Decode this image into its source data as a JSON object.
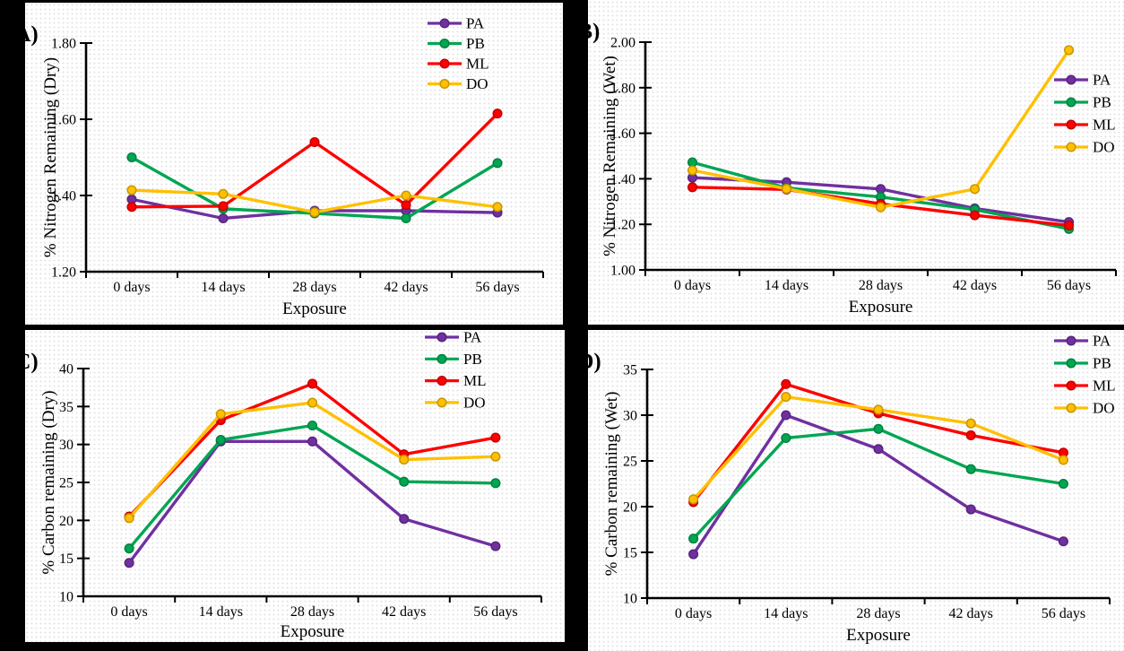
{
  "figure": {
    "background_color": "#000000",
    "panel_background_color": "#ffffff",
    "texture_dot_color": "#e2e2e2",
    "text_color": "#000000"
  },
  "series_colors": {
    "PA": "#7030A0",
    "PB": "#00A652",
    "ML": "#FE0000",
    "DO": "#FFC000"
  },
  "chart_data": [
    {
      "id": "A",
      "panel_label": "(A)",
      "type": "line",
      "xlabel": "Exposure",
      "ylabel": "% Nitrogen Remaining (Dry)",
      "ylim": [
        1.2,
        1.8
      ],
      "yticks": [
        1.2,
        1.4,
        1.6,
        1.8
      ],
      "ytick_decimals": 2,
      "grid": false,
      "legend_position": "inside-top-right",
      "categories": [
        "0 days",
        "14 days",
        "28 days",
        "42 days",
        "56 days"
      ],
      "series": [
        {
          "name": "PA",
          "color": "#7030A0",
          "values": [
            1.39,
            1.34,
            1.36,
            1.36,
            1.355
          ]
        },
        {
          "name": "PB",
          "color": "#00A652",
          "values": [
            1.5,
            1.365,
            1.353,
            1.34,
            1.485
          ]
        },
        {
          "name": "ML",
          "color": "#FE0000",
          "values": [
            1.37,
            1.372,
            1.54,
            1.375,
            1.615
          ]
        },
        {
          "name": "DO",
          "color": "#FFC000",
          "values": [
            1.414,
            1.404,
            1.356,
            1.4,
            1.37
          ]
        }
      ]
    },
    {
      "id": "B",
      "panel_label": "(B)",
      "type": "line",
      "xlabel": "Exposure",
      "ylabel": "% Nitrogen Remaining (Wet)",
      "ylim": [
        1.0,
        2.0
      ],
      "yticks": [
        1.0,
        1.2,
        1.4,
        1.6,
        1.8,
        2.0
      ],
      "ytick_decimals": 2,
      "grid": false,
      "legend_position": "inside-middle-right",
      "categories": [
        "0 days",
        "14 days",
        "28 days",
        "42 days",
        "56 days"
      ],
      "series": [
        {
          "name": "PA",
          "color": "#7030A0",
          "values": [
            1.405,
            1.385,
            1.355,
            1.27,
            1.21
          ]
        },
        {
          "name": "PB",
          "color": "#00A652",
          "values": [
            1.472,
            1.36,
            1.32,
            1.265,
            1.18
          ]
        },
        {
          "name": "ML",
          "color": "#FE0000",
          "values": [
            1.363,
            1.353,
            1.29,
            1.24,
            1.195
          ]
        },
        {
          "name": "DO",
          "color": "#FFC000",
          "values": [
            1.437,
            1.356,
            1.275,
            1.355,
            1.965
          ]
        }
      ]
    },
    {
      "id": "C",
      "panel_label": "(C)",
      "type": "line",
      "xlabel": "Exposure",
      "ylabel": "% Carbon remaining (Dry)",
      "ylim": [
        10,
        40
      ],
      "yticks": [
        10,
        15,
        20,
        25,
        30,
        35,
        40
      ],
      "ytick_decimals": 0,
      "grid": false,
      "legend_position": "inside-top-right",
      "categories": [
        "0 days",
        "14 days",
        "28 days",
        "42 days",
        "56 days"
      ],
      "series": [
        {
          "name": "PA",
          "color": "#7030A0",
          "values": [
            14.4,
            30.4,
            30.4,
            20.2,
            16.6
          ]
        },
        {
          "name": "PB",
          "color": "#00A652",
          "values": [
            16.3,
            30.6,
            32.5,
            25.1,
            24.9
          ]
        },
        {
          "name": "ML",
          "color": "#FE0000",
          "values": [
            20.5,
            33.2,
            38.0,
            28.7,
            30.9
          ]
        },
        {
          "name": "DO",
          "color": "#FFC000",
          "values": [
            20.3,
            34.0,
            35.5,
            28.0,
            28.4
          ]
        }
      ]
    },
    {
      "id": "D",
      "panel_label": "(D)",
      "type": "line",
      "xlabel": "Exposure",
      "ylabel": "% Carbon remaining (Wet)",
      "ylim": [
        10,
        35
      ],
      "yticks": [
        10,
        15,
        20,
        25,
        30,
        35
      ],
      "ytick_decimals": 0,
      "grid": false,
      "legend_position": "inside-top-right",
      "categories": [
        "0 days",
        "14 days",
        "28 days",
        "42 days",
        "56 days"
      ],
      "series": [
        {
          "name": "PA",
          "color": "#7030A0",
          "values": [
            14.8,
            30.0,
            26.3,
            19.7,
            16.2
          ]
        },
        {
          "name": "PB",
          "color": "#00A652",
          "values": [
            16.5,
            27.5,
            28.5,
            24.1,
            22.5
          ]
        },
        {
          "name": "ML",
          "color": "#FE0000",
          "values": [
            20.5,
            33.4,
            30.2,
            27.8,
            25.9
          ]
        },
        {
          "name": "DO",
          "color": "#FFC000",
          "values": [
            20.8,
            32.0,
            30.6,
            29.1,
            25.1
          ]
        }
      ]
    }
  ]
}
